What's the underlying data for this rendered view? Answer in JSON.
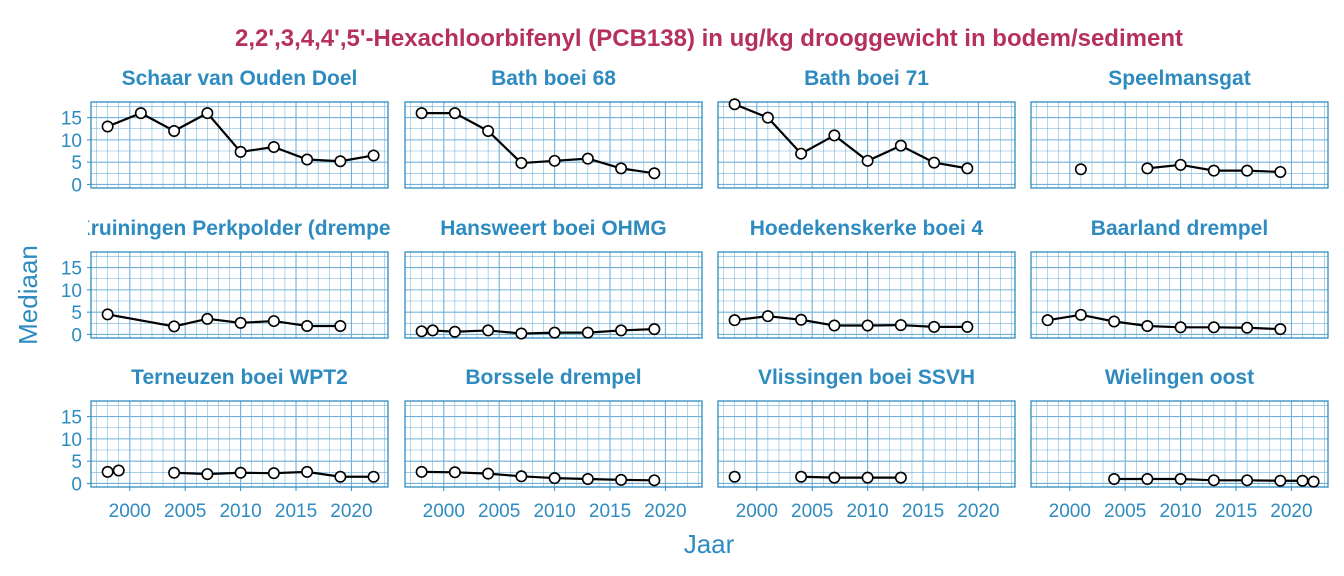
{
  "chart_data": {
    "type": "line",
    "title": "2,2',3,4,4',5'-Hexachloorbifenyl (PCB138) in ug/kg drooggewicht in bodem/sediment",
    "xlabel": "Jaar",
    "ylabel": "Mediaan",
    "xlim": [
      1996.5,
      2023.3
    ],
    "ylim": [
      -0.8,
      18.5
    ],
    "x_ticks": [
      "2000",
      "2005",
      "2010",
      "2015",
      "2020"
    ],
    "y_ticks": [
      "0",
      "5",
      "10",
      "15"
    ],
    "grid": true,
    "colors": {
      "title": "#b5305c",
      "accent": "#2e8bc0",
      "grid": "#6fb0d8",
      "line": "#000000",
      "marker_fill": "#ffffff"
    },
    "panels": [
      {
        "title": "Schaar van Ouden Doel",
        "x": [
          1998,
          2001,
          2004,
          2007,
          2010,
          2013,
          2016,
          2019,
          2022
        ],
        "y": [
          13.0,
          16.0,
          12.0,
          16.0,
          7.3,
          8.4,
          5.6,
          5.2,
          6.5
        ]
      },
      {
        "title": "Bath boei 68",
        "x": [
          1998,
          2001,
          2004,
          2007,
          2010,
          2013,
          2016,
          2019
        ],
        "y": [
          16.0,
          16.0,
          12.0,
          4.8,
          5.3,
          5.8,
          3.6,
          2.5
        ]
      },
      {
        "title": "Bath boei 71",
        "x": [
          1998,
          2001,
          2004,
          2007,
          2010,
          2013,
          2016,
          2019
        ],
        "y": [
          18.0,
          15.0,
          6.9,
          11.0,
          5.3,
          8.7,
          4.9,
          3.6
        ]
      },
      {
        "title": "Speelmansgat",
        "x": [
          2001,
          2007,
          2010,
          2013,
          2016,
          2019
        ],
        "y": [
          3.4,
          3.6,
          4.4,
          3.1,
          3.1,
          2.8
        ],
        "gaps_after": [
          0
        ]
      },
      {
        "title": "Kruiningen Perkpolder (drempel)",
        "x": [
          1998,
          2004,
          2007,
          2010,
          2013,
          2016,
          2019
        ],
        "y": [
          4.5,
          1.8,
          3.5,
          2.6,
          3.0,
          1.9,
          1.9
        ]
      },
      {
        "title": "Hansweert boei OHMG",
        "x": [
          1998,
          1999,
          2001,
          2004,
          2007,
          2010,
          2013,
          2016,
          2019
        ],
        "y": [
          0.7,
          0.9,
          0.6,
          0.9,
          0.2,
          0.4,
          0.4,
          0.9,
          1.2
        ]
      },
      {
        "title": "Hoedekenskerke boei 4",
        "x": [
          1998,
          2001,
          2004,
          2007,
          2010,
          2013,
          2016,
          2019
        ],
        "y": [
          3.2,
          4.1,
          3.3,
          2.0,
          2.0,
          2.1,
          1.7,
          1.7
        ]
      },
      {
        "title": "Baarland drempel",
        "x": [
          1998,
          2001,
          2004,
          2007,
          2010,
          2013,
          2016,
          2019
        ],
        "y": [
          3.2,
          4.4,
          2.9,
          1.9,
          1.6,
          1.6,
          1.5,
          1.2
        ]
      },
      {
        "title": "Terneuzen boei WPT2",
        "x": [
          1998,
          1999,
          2004,
          2007,
          2010,
          2013,
          2016,
          2019,
          2022
        ],
        "y": [
          2.6,
          2.9,
          2.4,
          2.1,
          2.4,
          2.3,
          2.6,
          1.5,
          1.5
        ],
        "gaps_after": [
          1
        ]
      },
      {
        "title": "Borssele drempel",
        "x": [
          1998,
          2001,
          2004,
          2007,
          2010,
          2013,
          2016,
          2019
        ],
        "y": [
          2.6,
          2.5,
          2.2,
          1.6,
          1.2,
          1.0,
          0.8,
          0.7
        ]
      },
      {
        "title": "Vlissingen boei SSVH",
        "x": [
          1998,
          2004,
          2007,
          2010,
          2013
        ],
        "y": [
          1.5,
          1.5,
          1.3,
          1.3,
          1.3
        ],
        "gaps_after": [
          0
        ]
      },
      {
        "title": "Wielingen oost",
        "x": [
          2004,
          2007,
          2010,
          2013,
          2016,
          2019,
          2021,
          2022
        ],
        "y": [
          1.0,
          1.0,
          1.0,
          0.7,
          0.7,
          0.6,
          0.6,
          0.4
        ]
      }
    ]
  }
}
